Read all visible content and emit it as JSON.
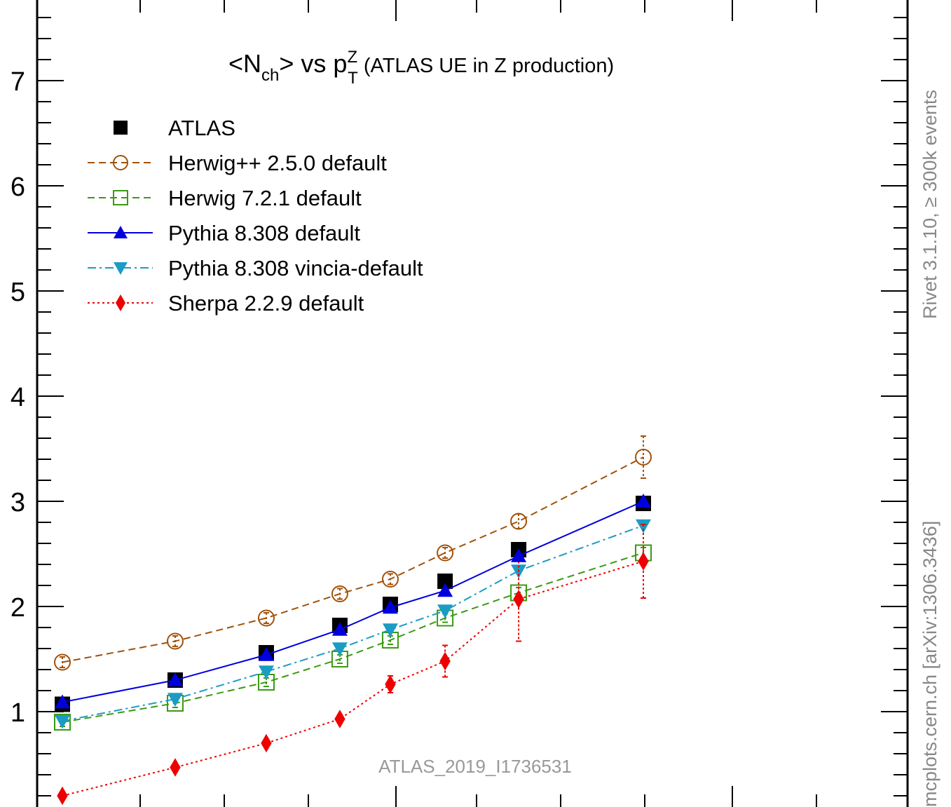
{
  "chart_data": {
    "type": "line",
    "title": "<N_ch> vs p_T^Z (ATLAS UE in Z production)",
    "title_parts": {
      "lt": "<N",
      "sub1": "ch",
      "mid": "> vs p",
      "sup": "Z",
      "sub2": "T",
      "rest": " (ATLAS UE in Z production)"
    },
    "analysis_label": "ATLAS_2019_I1736531",
    "xlim": [
      0,
      1
    ],
    "ylim": [
      0,
      7.6
    ],
    "y_ticks": [
      1,
      2,
      3,
      4,
      5,
      6,
      7
    ],
    "grid": false,
    "legend_position": "top-left",
    "x": [
      0.05,
      0.1,
      0.175,
      0.275,
      0.375,
      0.525,
      0.825,
      1.775
    ],
    "series": [
      {
        "name": "ATLAS",
        "color": "#000000",
        "marker": "square-filled",
        "line": "none",
        "values": [
          1.07,
          1.3,
          1.56,
          1.82,
          2.02,
          2.24,
          2.54,
          2.98
        ]
      },
      {
        "name": "Herwig++ 2.5.0 default",
        "color": "#a0520a",
        "marker": "circle-open",
        "line": "dashed",
        "values": [
          1.47,
          1.67,
          1.89,
          2.12,
          2.26,
          2.51,
          2.81,
          3.42
        ],
        "errors": [
          0.05,
          0.05,
          0.05,
          0.05,
          0.05,
          0.05,
          0.07,
          0.2
        ]
      },
      {
        "name": "Herwig 7.2.1 default",
        "color": "#3a9a12",
        "marker": "square-open",
        "line": "dashed",
        "values": [
          0.9,
          1.08,
          1.28,
          1.5,
          1.68,
          1.89,
          2.13,
          2.51
        ],
        "errors": [
          0.04,
          0.04,
          0.04,
          0.04,
          0.04,
          0.04,
          0.05,
          0.05
        ]
      },
      {
        "name": "Pythia 8.308 default",
        "color": "#0000dd",
        "marker": "triangle-up-filled",
        "line": "solid",
        "values": [
          1.09,
          1.3,
          1.54,
          1.78,
          1.99,
          2.15,
          2.48,
          3.0
        ]
      },
      {
        "name": "Pythia 8.308 vincia-default",
        "color": "#1a9cc4",
        "marker": "triangle-down-filled",
        "line": "dashdot",
        "values": [
          0.91,
          1.12,
          1.38,
          1.6,
          1.78,
          1.96,
          2.34,
          2.77
        ]
      },
      {
        "name": "Sherpa 2.2.9 default",
        "color": "#ee0000",
        "marker": "diamond-filled",
        "line": "dotted",
        "values": [
          0.2,
          0.47,
          0.7,
          0.93,
          1.26,
          1.48,
          2.07,
          2.43
        ],
        "errors": [
          0.02,
          0.03,
          0.03,
          0.04,
          0.08,
          0.15,
          0.4,
          0.35
        ]
      }
    ]
  },
  "side_labels": {
    "rivet": "Rivet 3.1.10, ≥ 300k events",
    "mcplots": "mcplots.cern.ch [arXiv:1306.3436]"
  }
}
